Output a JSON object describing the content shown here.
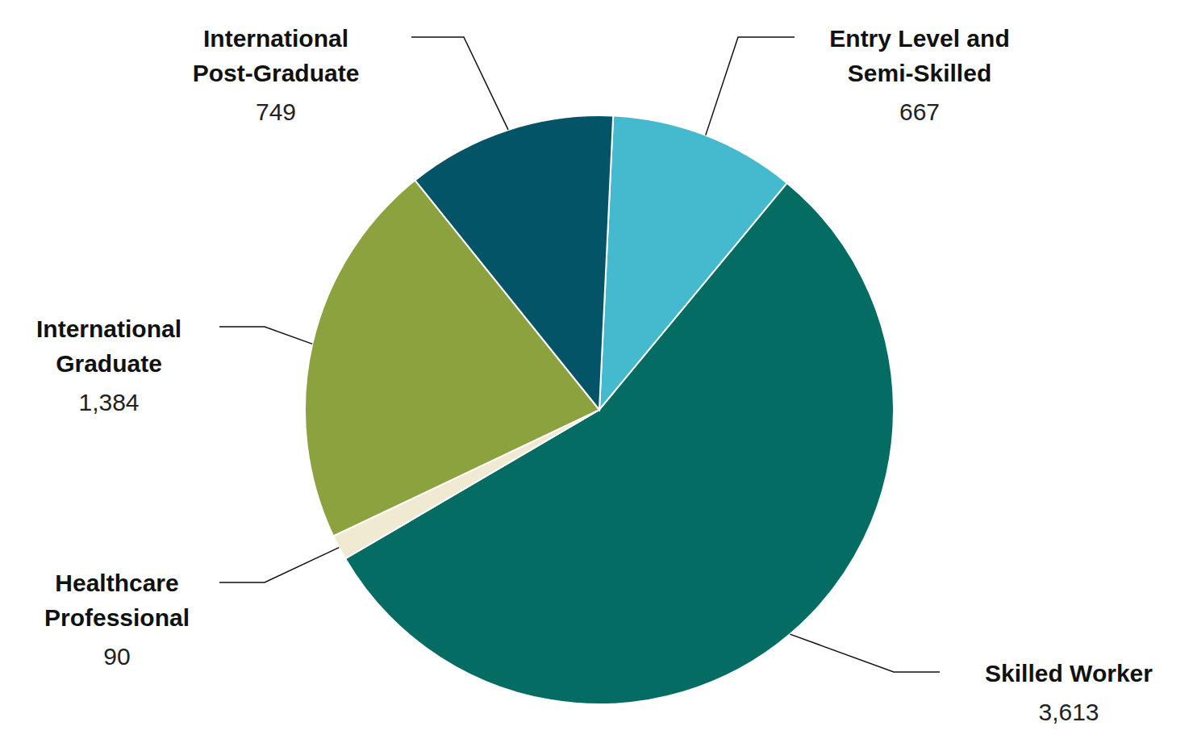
{
  "chart_data": {
    "type": "pie",
    "categories": [
      "Entry Level and Semi-Skilled",
      "Skilled Worker",
      "Healthcare Professional",
      "International Graduate",
      "International Post-Graduate"
    ],
    "values": [
      667,
      3613,
      90,
      1384,
      749
    ],
    "value_labels": [
      "667",
      "3,613",
      "90",
      "1,384",
      "749"
    ],
    "colors": [
      "#45bacf",
      "#046c63",
      "#f0ead2",
      "#8ba23e",
      "#035467"
    ],
    "data_labels": true
  }
}
